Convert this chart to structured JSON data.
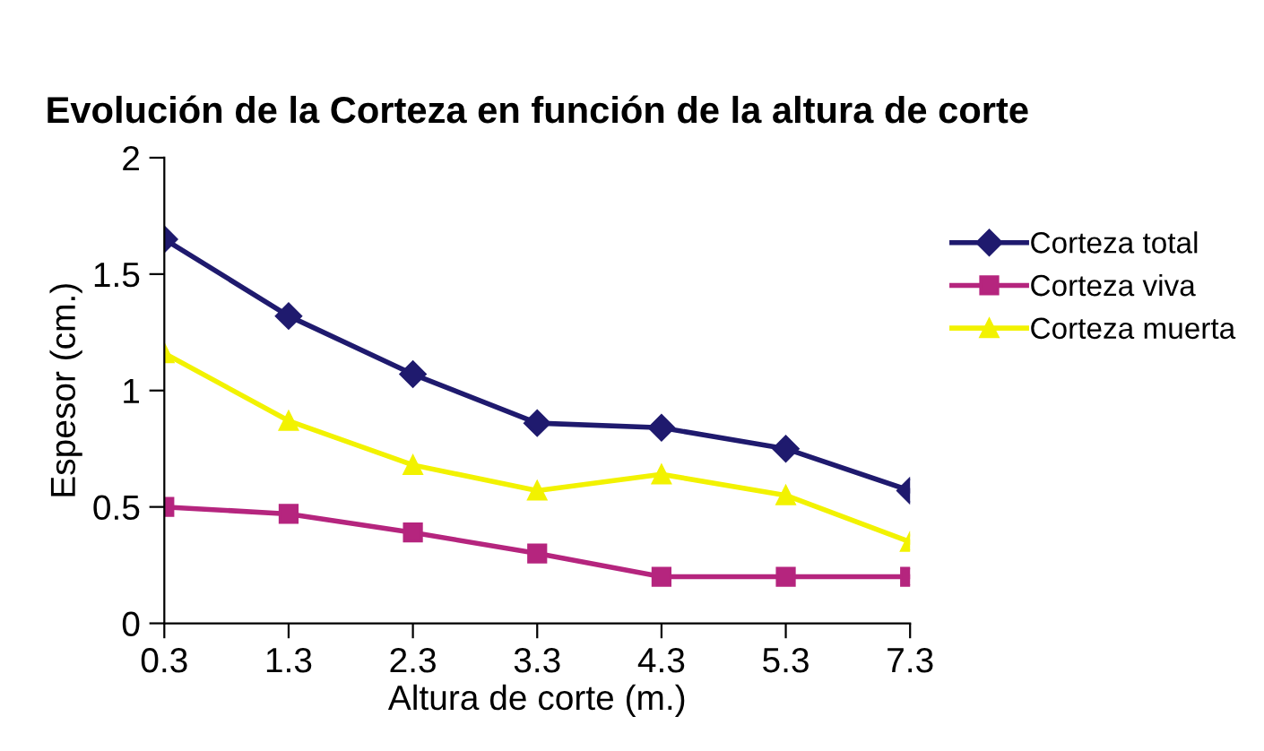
{
  "chart_data": {
    "type": "line",
    "title": "Evolución de la Corteza en función de la altura de corte",
    "xlabel": "Altura de corte (m.)",
    "ylabel": "Espesor (cm.)",
    "categories": [
      "0.3",
      "1.3",
      "2.3",
      "3.3",
      "4.3",
      "5.3",
      "7.3"
    ],
    "series": [
      {
        "name": "Corteza total",
        "color": "#1f1a6e",
        "marker": "diamond",
        "values": [
          1.65,
          1.32,
          1.07,
          0.86,
          0.84,
          0.75,
          0.57
        ]
      },
      {
        "name": "Corteza viva",
        "color": "#b5257e",
        "marker": "square",
        "values": [
          0.5,
          0.47,
          0.39,
          0.3,
          0.2,
          0.2,
          0.2
        ]
      },
      {
        "name": "Corteza muerta",
        "color": "#f2f200",
        "marker": "triangle",
        "values": [
          1.16,
          0.87,
          0.68,
          0.57,
          0.64,
          0.55,
          0.35
        ]
      }
    ],
    "ylim": [
      0,
      2
    ],
    "yticks": [
      0,
      0.5,
      1,
      1.5,
      2
    ],
    "grid": false,
    "legend": "right"
  }
}
